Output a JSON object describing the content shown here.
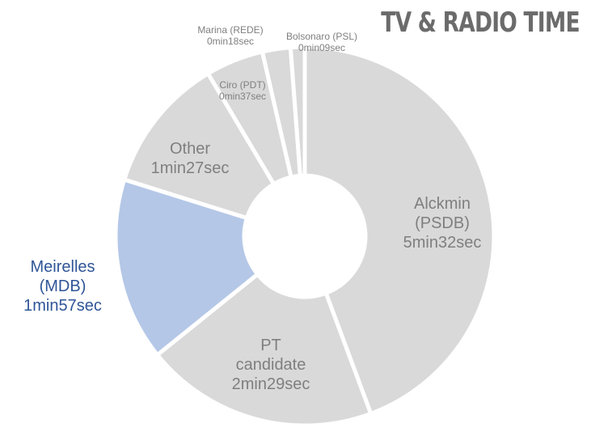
{
  "chart_data": {
    "type": "donut",
    "title": "TV & RADIO TIME",
    "categories": [
      "Alckmin (PSDB)",
      "PT candidate",
      "Meirelles (MDB)",
      "Other",
      "Ciro (PDT)",
      "Marina (REDE)",
      "Bolsonaro (PSL)"
    ],
    "values": [
      332,
      149,
      117,
      87,
      37,
      18,
      9
    ],
    "value_labels": [
      "5min32sec",
      "2min29sec",
      "1min57sec",
      "1min27sec",
      "0min37sec",
      "0min18sec",
      "0min09sec"
    ],
    "colors": [
      "#d9d9d9",
      "#d9d9d9",
      "#b4c7e7",
      "#d9d9d9",
      "#d9d9d9",
      "#d9d9d9",
      "#d9d9d9"
    ],
    "label_colors": [
      "#7f7f7f",
      "#7f7f7f",
      "#2f5597",
      "#7f7f7f",
      "#7f7f7f",
      "#7f7f7f",
      "#7f7f7f"
    ]
  }
}
